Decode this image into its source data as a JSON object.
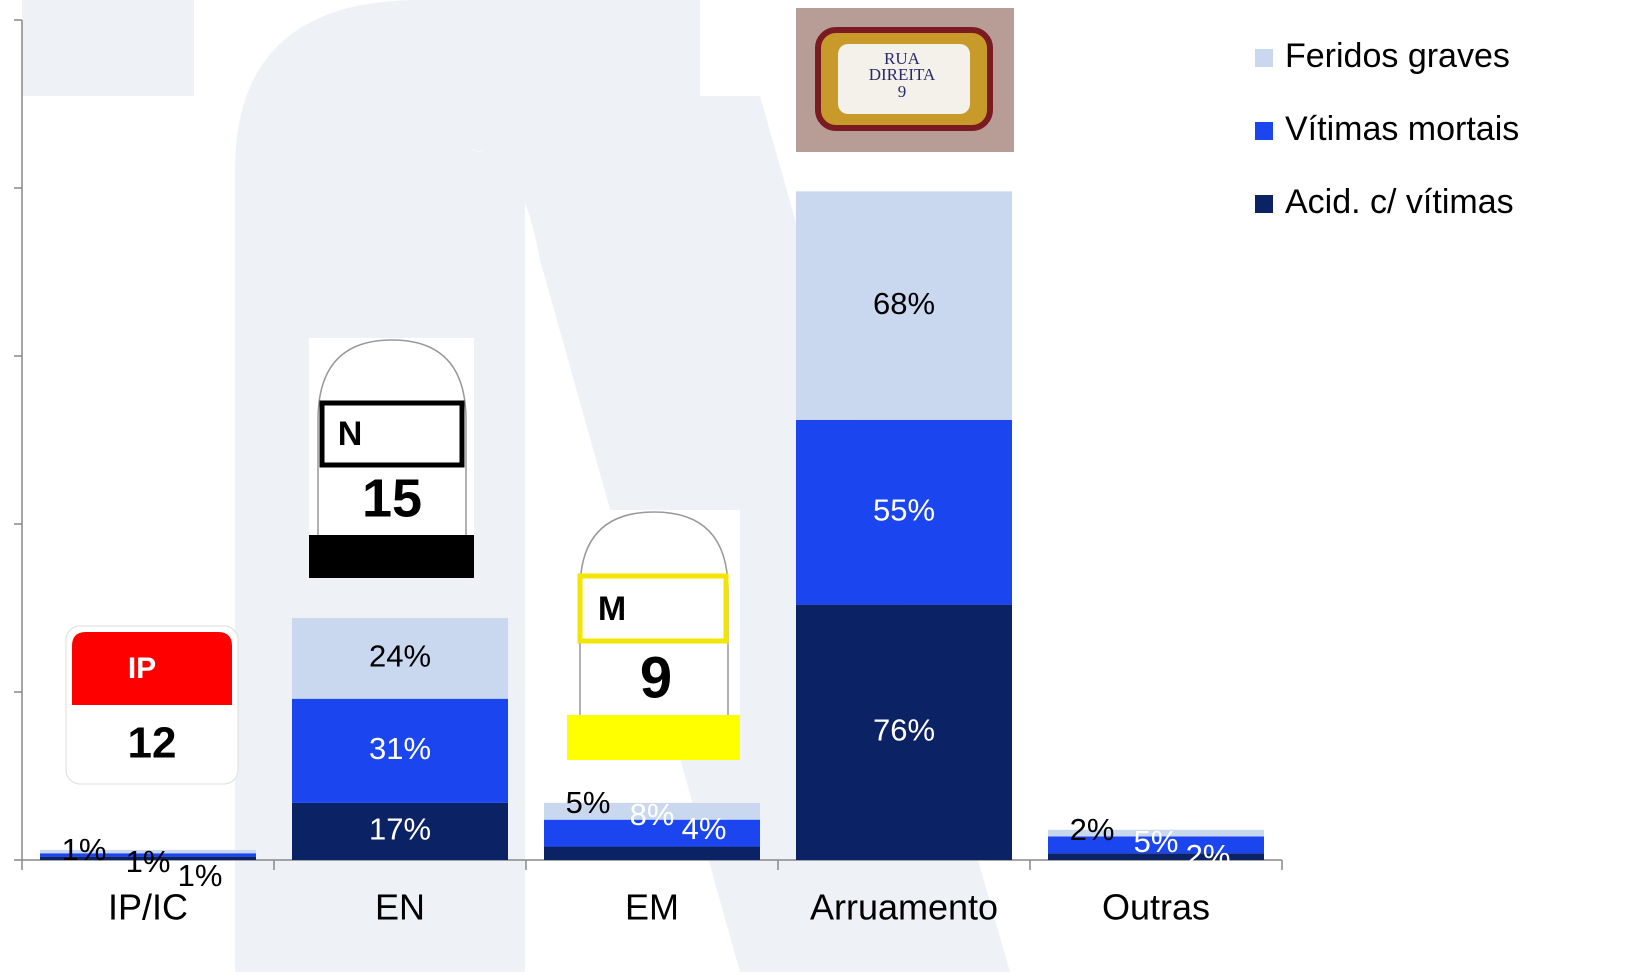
{
  "chart_data": {
    "type": "stacked_bar",
    "categories": [
      "IP/IC",
      "EN",
      "EM",
      "Arruamento",
      "Outras"
    ],
    "series": [
      {
        "name": "Acid. c/ vítimas",
        "color": "#0b2265",
        "values": [
          1,
          17,
          4,
          76,
          2
        ],
        "value_labels": [
          "1%",
          "17%",
          "4%",
          "76%",
          "2%"
        ]
      },
      {
        "name": "Vítimas mortais",
        "color": "#1a45ef",
        "values": [
          1,
          31,
          8,
          55,
          5
        ],
        "value_labels": [
          "1%",
          "31%",
          "8%",
          "55%",
          "5%"
        ]
      },
      {
        "name": "Feridos graves",
        "color": "#c9d8ee",
        "values": [
          1,
          24,
          5,
          68,
          2
        ],
        "value_labels": [
          "1%",
          "24%",
          "5%",
          "68%",
          "2%"
        ]
      }
    ],
    "ylim": [
      0,
      250
    ],
    "yticks": [
      0,
      50,
      100,
      150,
      200,
      250
    ],
    "legend": "top-right",
    "annotations": [
      "IP",
      "12",
      "N",
      "15",
      "M",
      "9",
      "RUA",
      "DIREITA",
      "9"
    ]
  }
}
